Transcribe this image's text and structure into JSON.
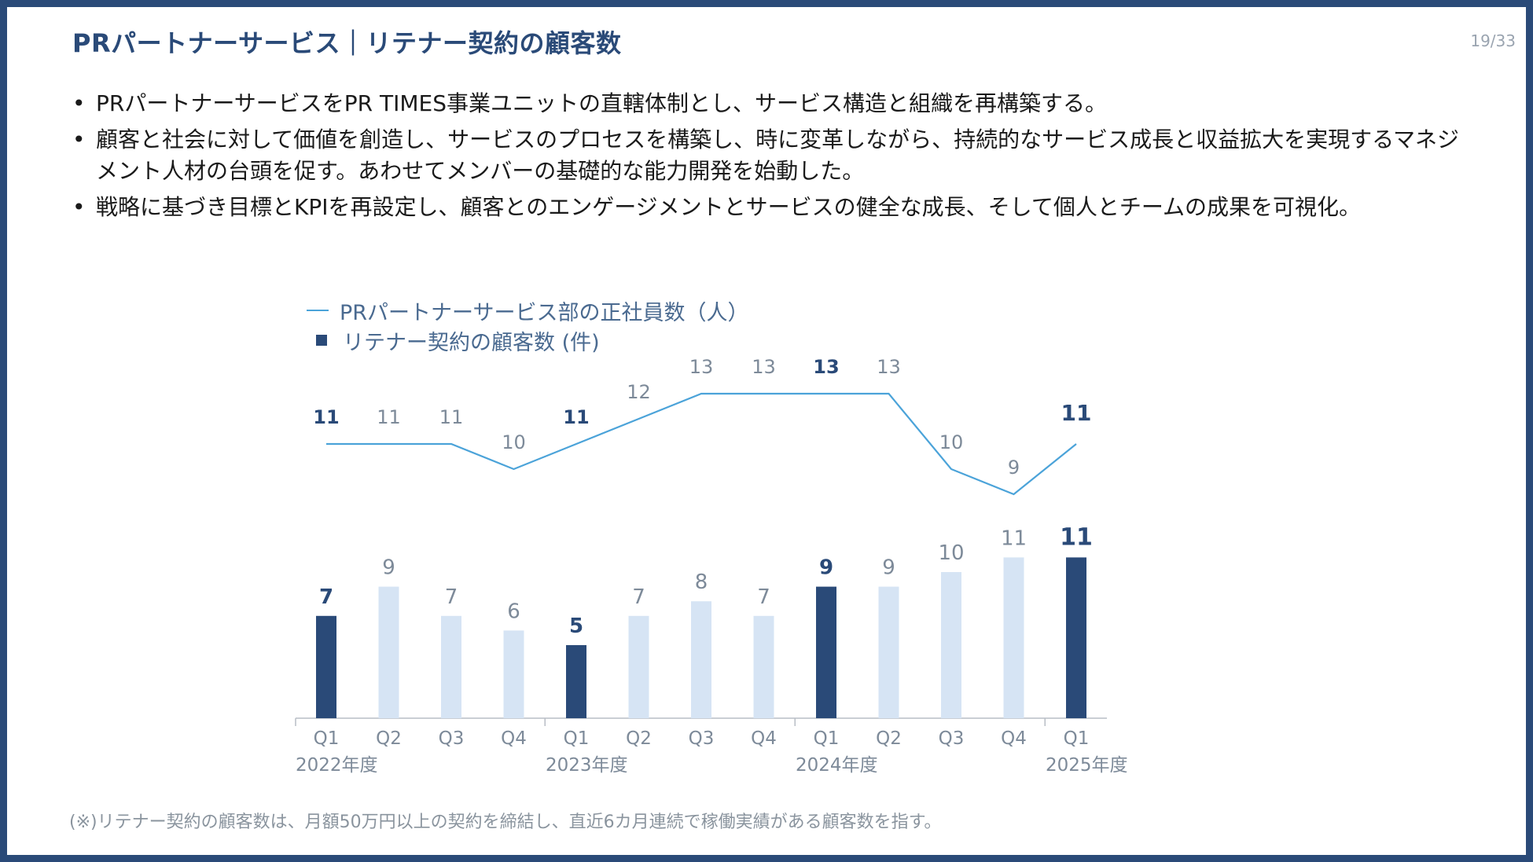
{
  "slide": {
    "title": "PRパートナーサービス｜リテナー契約の顧客数",
    "page_number": "19/33",
    "bullets": [
      "PRパートナーサービスをPR TIMES事業ユニットの直轄体制とし、サービス構造と組織を再構築する。",
      "顧客と社会に対して価値を創造し、サービスのプロセスを構築し、時に変革しながら、持続的なサービス成長と収益拡大を実現するマネジメント人材の台頭を促す。あわせてメンバーの基礎的な能力開発を始動した。",
      "戦略に基づき目標とKPIを再設定し、顧客とのエンゲージメントとサービスの健全な成長、そして個人とチームの成果を可視化。"
    ],
    "footnote": "(※)リテナー契約の顧客数は、月額50万円以上の契約を締結し、直近6カ月連続で稼働実績がある顧客数を指す。"
  },
  "legend": {
    "line_label": "PRパートナーサービス部の正社員数（人）",
    "bar_label": "リテナー契約の顧客数 (件)"
  },
  "chart_data": {
    "type": "bar",
    "categories": [
      "Q1",
      "Q2",
      "Q3",
      "Q4",
      "Q1",
      "Q2",
      "Q3",
      "Q4",
      "Q1",
      "Q2",
      "Q3",
      "Q4",
      "Q1"
    ],
    "year_groups": [
      {
        "label": "2022年度",
        "start": 0
      },
      {
        "label": "2023年度",
        "start": 4
      },
      {
        "label": "2024年度",
        "start": 8
      },
      {
        "label": "2025年度",
        "start": 12
      }
    ],
    "series": [
      {
        "name": "リテナー契約の顧客数 (件)",
        "type": "bar",
        "values": [
          7,
          9,
          7,
          6,
          5,
          7,
          8,
          7,
          9,
          9,
          10,
          11,
          11
        ],
        "highlight": [
          0,
          4,
          8,
          12
        ]
      },
      {
        "name": "PRパートナーサービス部の正社員数（人）",
        "type": "line",
        "values": [
          11,
          11,
          11,
          10,
          11,
          12,
          13,
          13,
          13,
          13,
          10,
          9,
          11
        ],
        "highlight": [
          0,
          4,
          8,
          12
        ]
      }
    ],
    "colors": {
      "bar_dark": "#2a4a78",
      "bar_light": "#d6e4f4",
      "line": "#4ba3d9",
      "label_dark": "#2a4a78",
      "label_light": "#7d8a99"
    }
  }
}
